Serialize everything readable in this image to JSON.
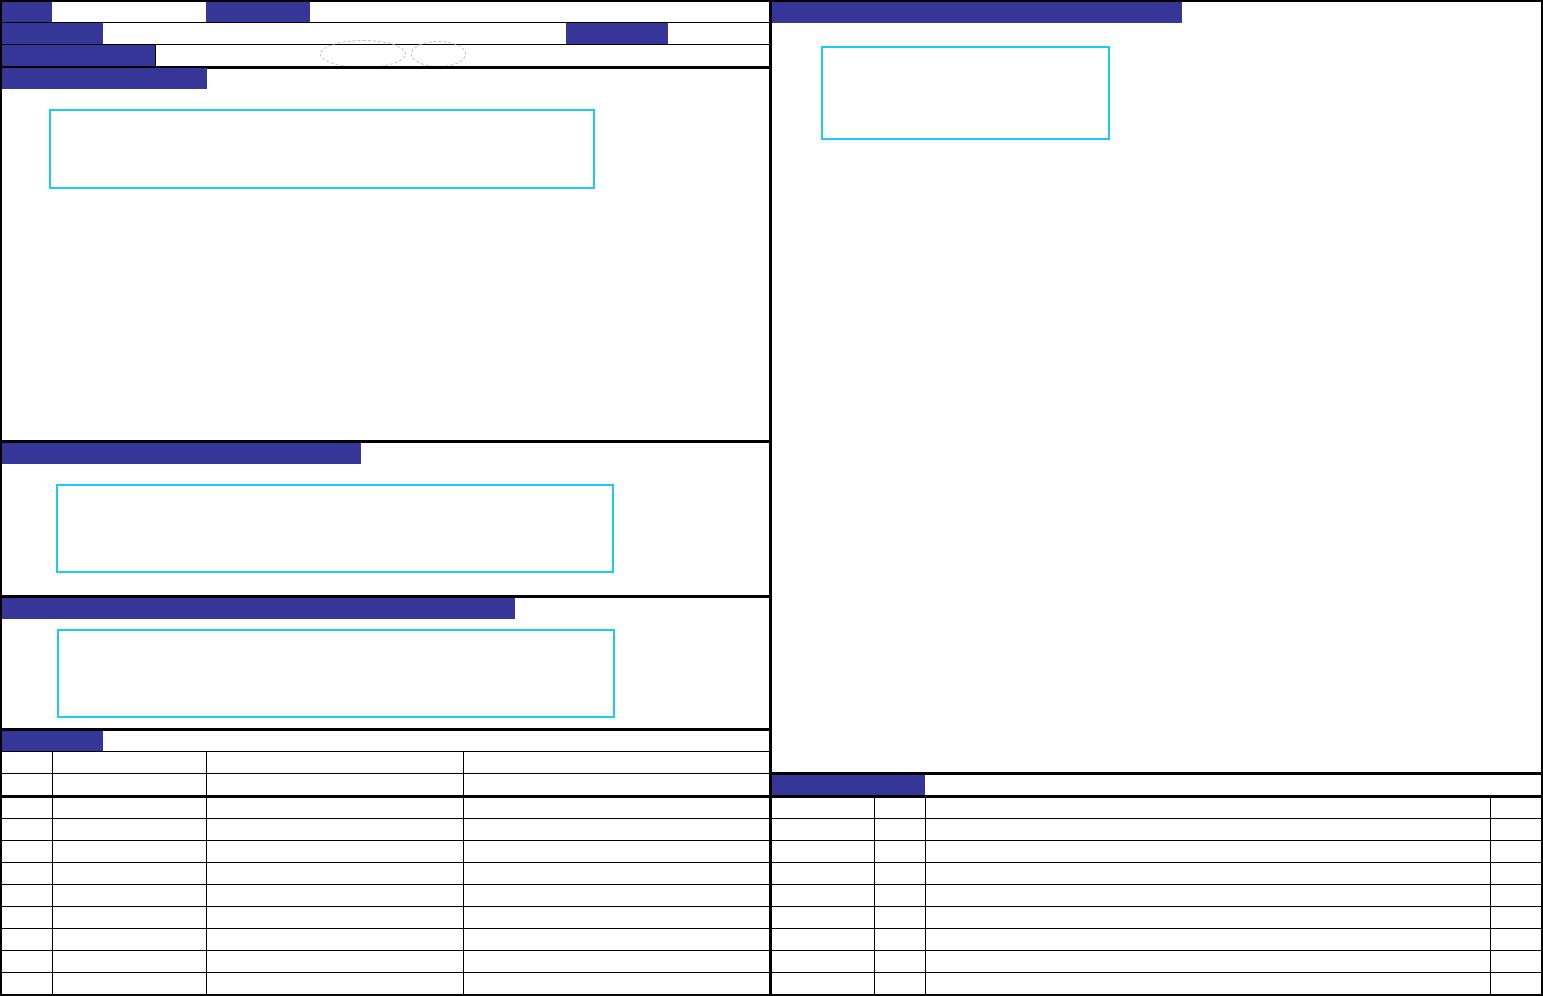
{
  "colors": {
    "header_fill": "#363699",
    "field_border": "#1ecbf0",
    "rule": "#000000",
    "background": "#ffffff"
  },
  "icons": {
    "option_ovals": "oval-radio-icon"
  }
}
